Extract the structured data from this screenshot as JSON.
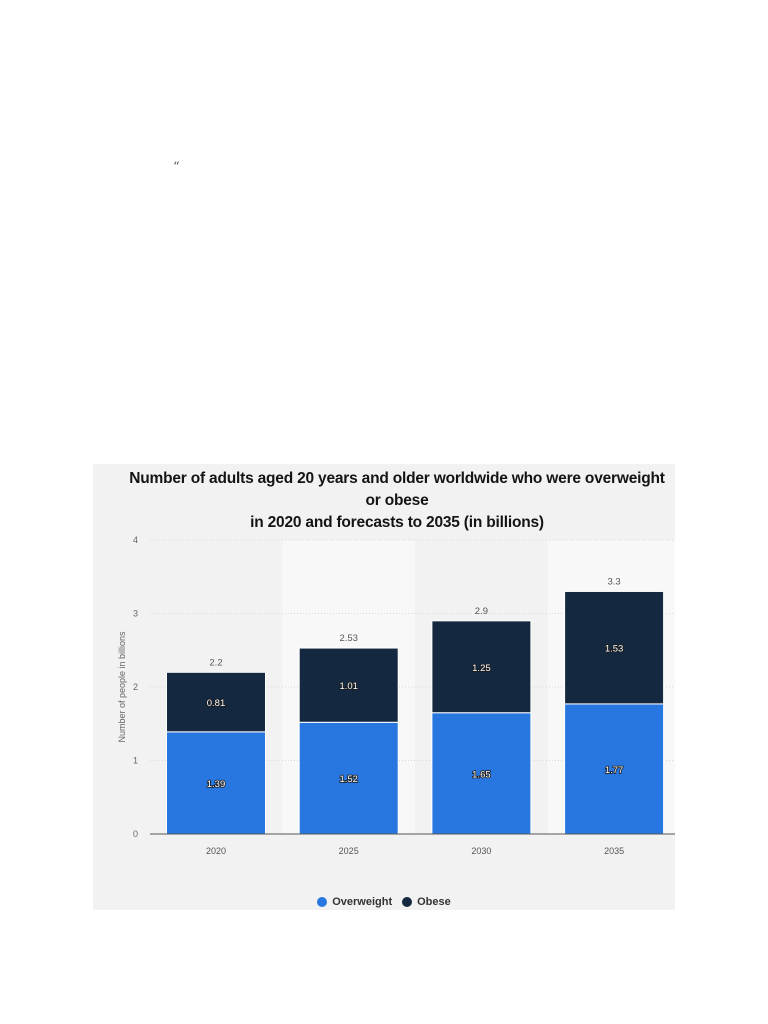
{
  "page": {
    "stray_mark": "“"
  },
  "colors": {
    "overweight": "#2877e0",
    "obese": "#14283f"
  },
  "chart_data": {
    "type": "bar",
    "stacked": true,
    "title": "Number of adults aged 20 years and older worldwide who were overweight or obese in 2020 and forecasts to 2035 (in billions)",
    "title_lines": [
      "Number of adults aged 20 years and older worldwide who were overweight or obese",
      "in 2020 and forecasts to 2035 (in billions)"
    ],
    "xlabel": "",
    "ylabel": "Number of people in billions",
    "ylim": [
      0,
      4
    ],
    "yticks": [
      0,
      1,
      2,
      3,
      4
    ],
    "categories": [
      "2020",
      "2025",
      "2030",
      "2035"
    ],
    "series": [
      {
        "name": "Overweight",
        "values": [
          1.39,
          1.52,
          1.65,
          1.77
        ],
        "value_labels": [
          "1.39",
          "1.52",
          "1.65",
          "1.77"
        ]
      },
      {
        "name": "Obese",
        "values": [
          0.81,
          1.01,
          1.25,
          1.53
        ],
        "value_labels": [
          "0.81",
          "1.01",
          "1.25",
          "1.53"
        ]
      }
    ],
    "totals": [
      "2.2",
      "2.53",
      "2.9",
      "3.3"
    ],
    "grid": true,
    "legend_position": "bottom"
  }
}
